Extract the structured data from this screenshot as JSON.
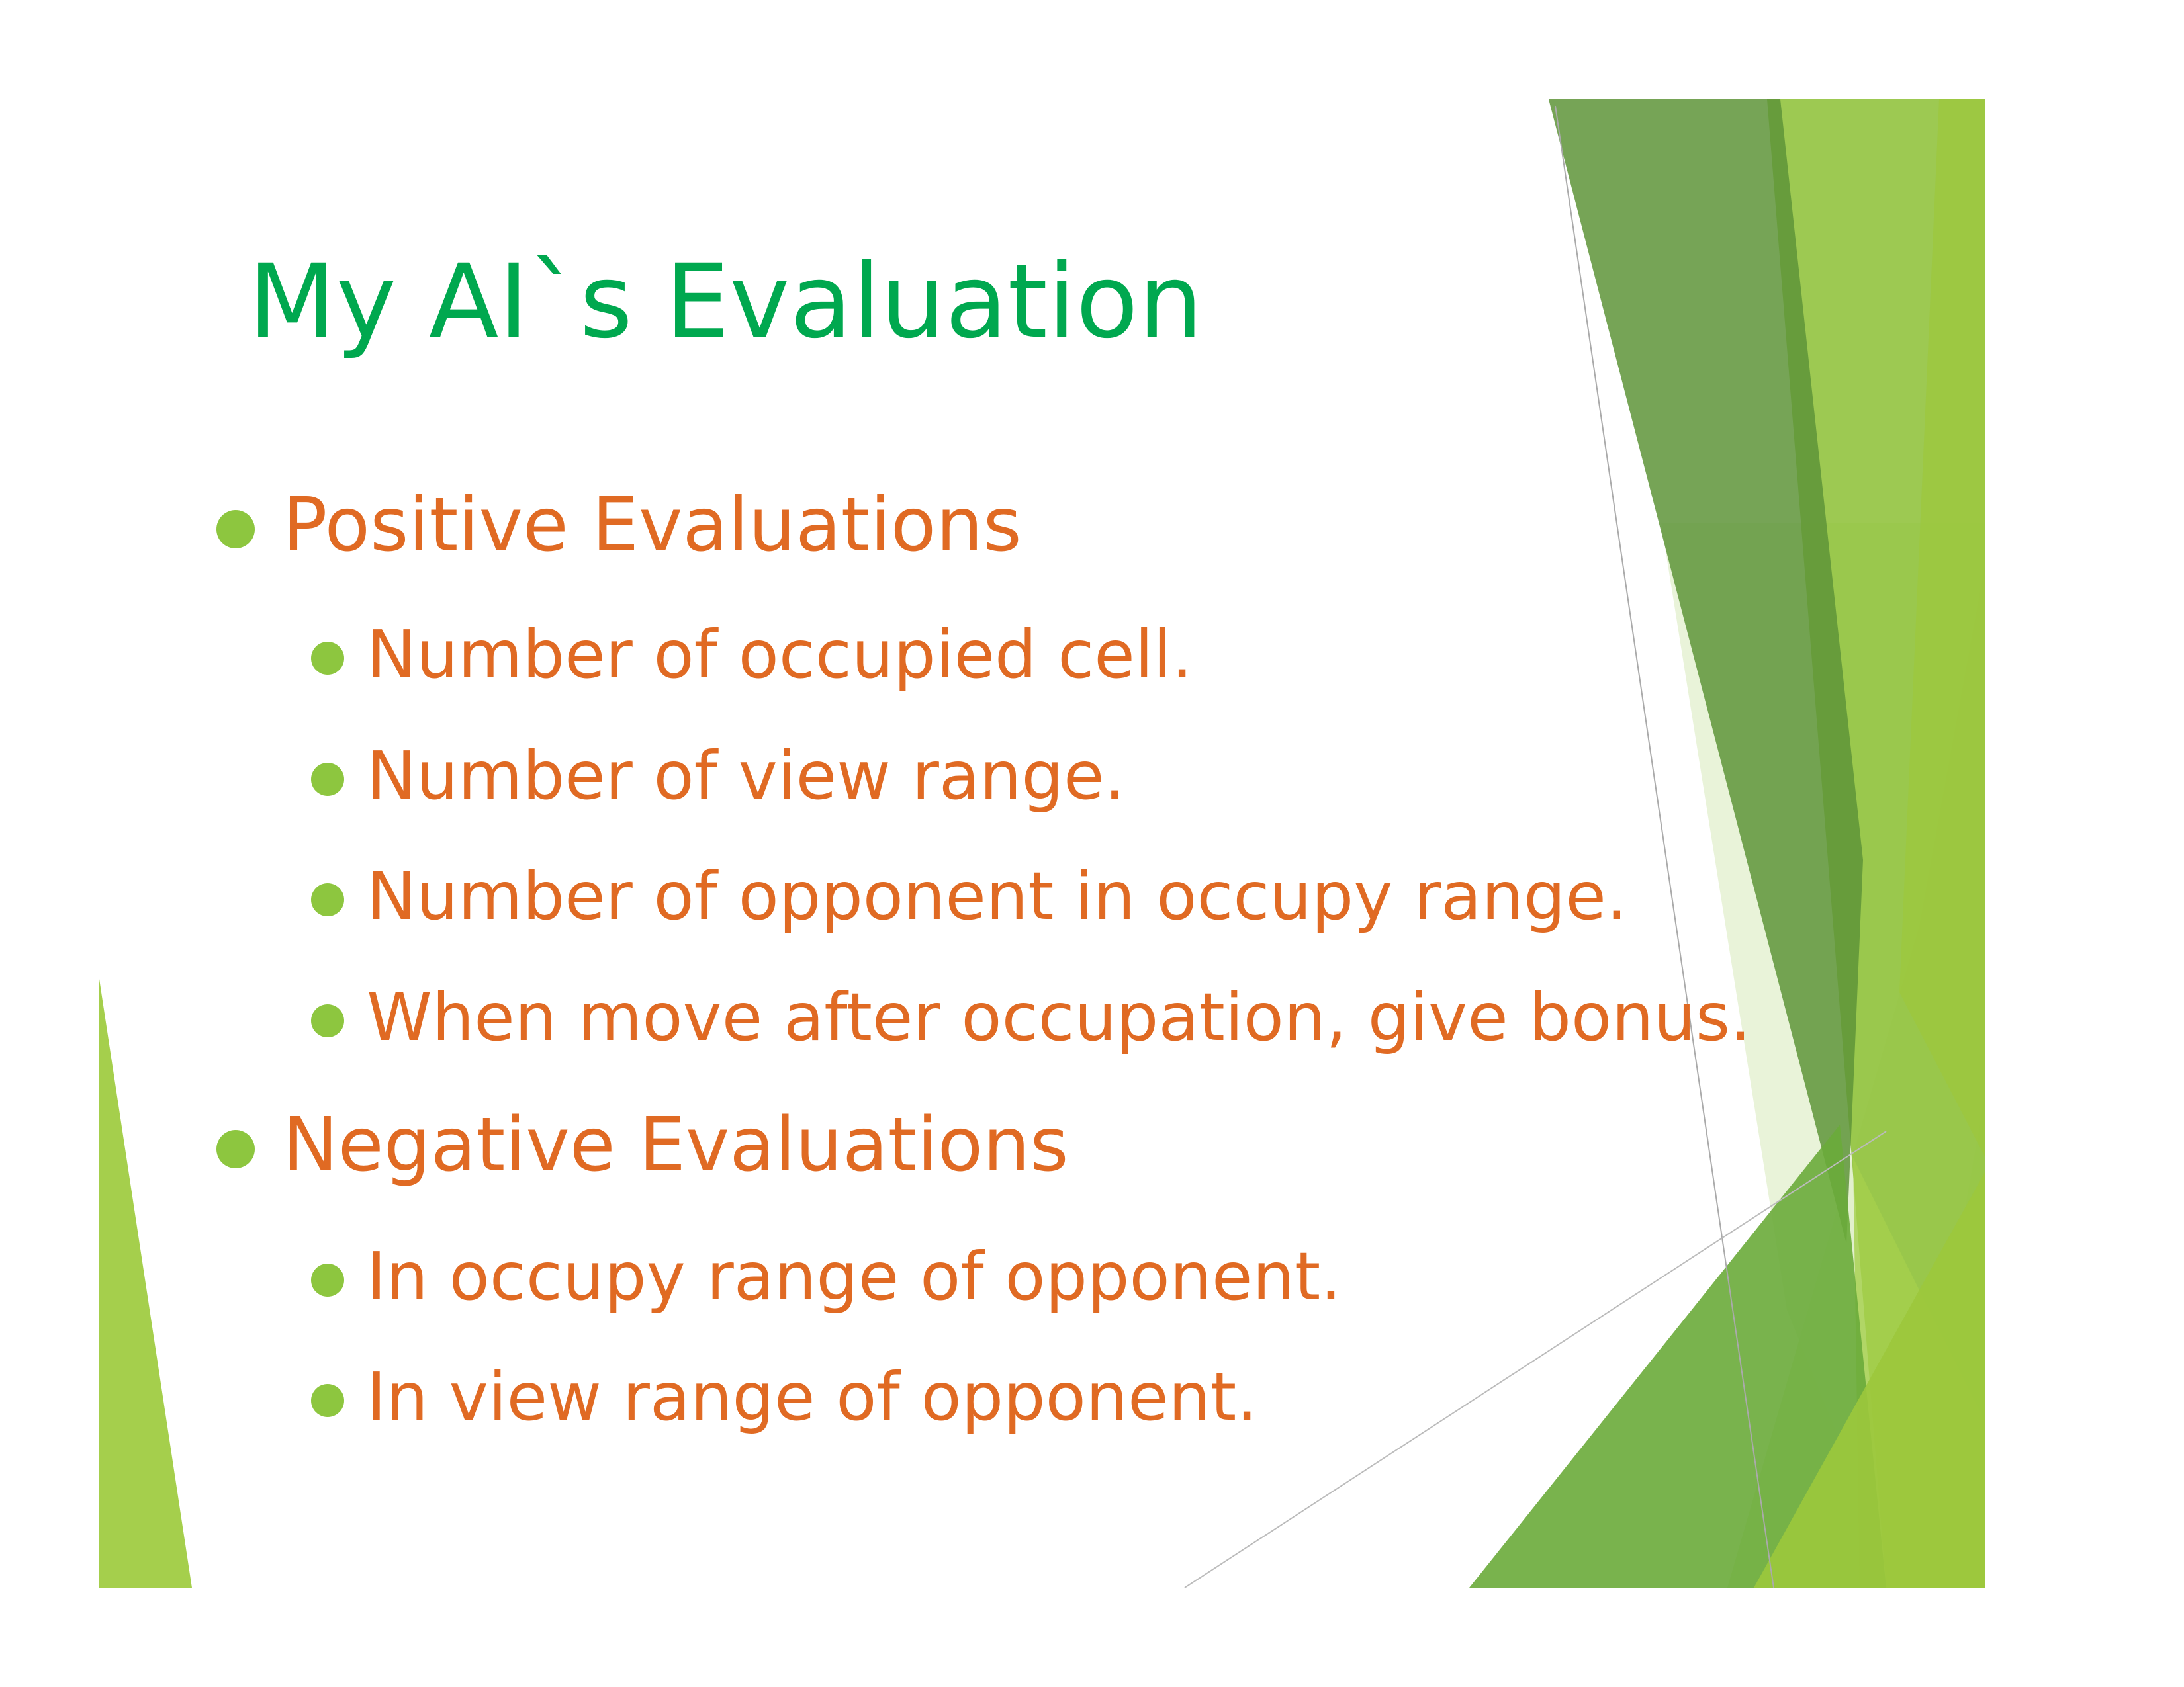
{
  "slide": {
    "title": "My AI`s Evaluation",
    "items": [
      {
        "level": 1,
        "text": "Positive Evaluations"
      },
      {
        "level": 2,
        "text": "Number of occupied cell."
      },
      {
        "level": 2,
        "text": "Number of view range."
      },
      {
        "level": 2,
        "text": "Number of opponent in occupy range."
      },
      {
        "level": 2,
        "text": "When move after occupation, give bonus."
      },
      {
        "level": 1,
        "text": "Negative Evaluations"
      },
      {
        "level": 2,
        "text": "In occupy range of opponent."
      },
      {
        "level": 2,
        "text": "In view range of opponent."
      }
    ]
  },
  "colors": {
    "title": "#00a84f",
    "text": "#e06a23",
    "bullet": "#8dc63f",
    "accent_dark": "#5e9438",
    "accent_mid": "#7ab648",
    "accent_light": "#a5cf4c"
  }
}
